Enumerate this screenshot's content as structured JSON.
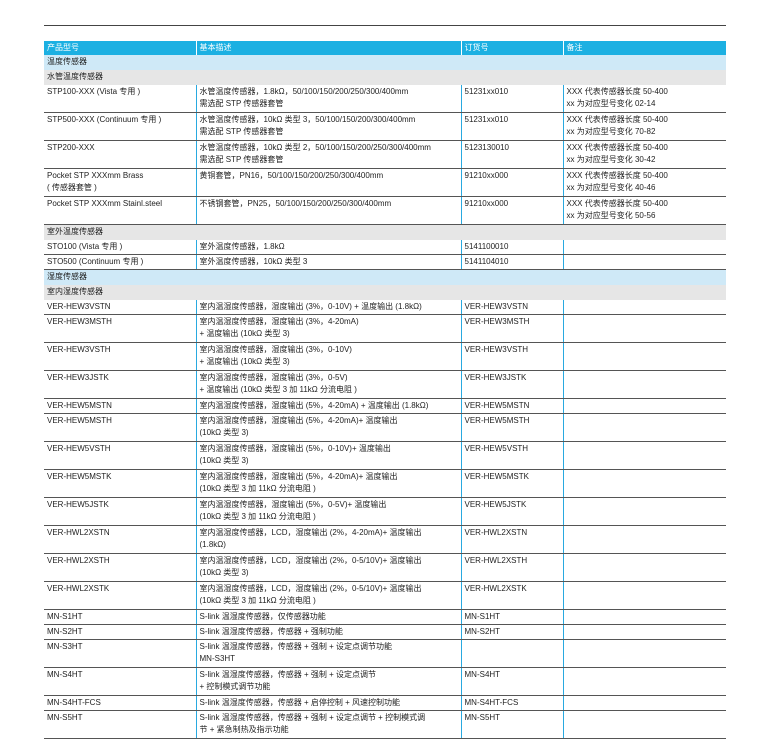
{
  "headers": [
    "产品型号",
    "基本描述",
    "订货号",
    "备注"
  ],
  "rows": [
    {
      "type": "cat",
      "label": "温度传感器"
    },
    {
      "type": "sub",
      "label": "水管温度传感器"
    },
    {
      "type": "item",
      "model": "STP100-XXX (Vista 专用 )",
      "desc": "水管温度传感器，1.8kΩ，50/100/150/200/250/300/400mm\n需选配 STP 传感器套管",
      "order": "51231xx010",
      "note": "XXX 代表传感器长度 50-400\nxx 为对应型号变化 02-14"
    },
    {
      "type": "item",
      "model": "STP500-XXX (Continuum 专用 )",
      "desc": "水管温度传感器，10kΩ 类型 3，50/100/150/200/300/400mm\n需选配 STP 传感器套管",
      "order": "51231xx010",
      "note": "XXX 代表传感器长度 50-400\nxx 为对应型号变化 70-82"
    },
    {
      "type": "item",
      "model": "STP200-XXX",
      "desc": "水管温度传感器，10kΩ 类型 2，50/100/150/200/250/300/400mm\n需选配 STP 传感器套管",
      "order": "5123130010",
      "note": "XXX 代表传感器长度 50-400\nxx 为对应型号变化 30-42"
    },
    {
      "type": "item",
      "model": "Pocket STP XXXmm Brass\n( 传感器套管 )",
      "desc": "黄铜套管，PN16，50/100/150/200/250/300/400mm",
      "order": "91210xx000",
      "note": "XXX 代表传感器长度 50-400\nxx 为对应型号变化 40-46"
    },
    {
      "type": "item",
      "model": "Pocket STP XXXmm Stainl.steel",
      "desc": "不锈钢套管，PN25，50/100/150/200/250/300/400mm",
      "order": "91210xx000",
      "note": "XXX 代表传感器长度 50-400\nxx 为对应型号变化 50-56"
    },
    {
      "type": "sub",
      "label": "室外温度传感器"
    },
    {
      "type": "item",
      "model": "STO100 (Vista 专用 )",
      "desc": "室外温度传感器，1.8kΩ",
      "order": "5141100010",
      "note": ""
    },
    {
      "type": "item",
      "model": "STO500 (Continuum 专用 )",
      "desc": "室外温度传感器，10kΩ 类型 3",
      "order": "5141104010",
      "note": ""
    },
    {
      "type": "cat",
      "label": "湿度传感器"
    },
    {
      "type": "sub",
      "label": "室内湿度传感器"
    },
    {
      "type": "item",
      "model": "VER-HEW3VSTN",
      "desc": "室内温湿度传感器，湿度输出 (3%，0-10V) + 温度输出 (1.8kΩ)",
      "order": "VER-HEW3VSTN",
      "note": ""
    },
    {
      "type": "item",
      "model": "VER-HEW3MSTH",
      "desc": "室内温湿度传感器，湿度输出 (3%，4-20mA)\n+ 温度输出 (10kΩ 类型 3)",
      "order": "VER-HEW3MSTH",
      "note": ""
    },
    {
      "type": "item",
      "model": "VER-HEW3VSTH",
      "desc": "室内温湿度传感器，湿度输出 (3%，0-10V)\n+ 温度输出 (10kΩ 类型 3)",
      "order": "VER-HEW3VSTH",
      "note": ""
    },
    {
      "type": "item",
      "model": "VER-HEW3JSTK",
      "desc": "室内温湿度传感器，湿度输出 (3%，0-5V)\n+ 温度输出 (10kΩ 类型 3 加 11kΩ 分流电阻 )",
      "order": "VER-HEW3JSTK",
      "note": ""
    },
    {
      "type": "item",
      "model": "VER-HEW5MSTN",
      "desc": "室内温湿度传感器，湿度输出 (5%，4-20mA) + 温度输出 (1.8kΩ)",
      "order": "VER-HEW5MSTN",
      "note": ""
    },
    {
      "type": "item",
      "model": "VER-HEW5MSTH",
      "desc": "室内温湿度传感器，湿度输出 (5%，4-20mA)+ 温度输出\n(10kΩ 类型 3)",
      "order": "VER-HEW5MSTH",
      "note": ""
    },
    {
      "type": "item",
      "model": "VER-HEW5VSTH",
      "desc": "室内温湿度传感器，湿度输出 (5%，0-10V)+ 温度输出\n(10kΩ 类型 3)",
      "order": "VER-HEW5VSTH",
      "note": ""
    },
    {
      "type": "item",
      "model": "VER-HEW5MSTK",
      "desc": "室内温湿度传感器，湿度输出 (5%，4-20mA)+ 温度输出\n(10kΩ 类型 3 加 11kΩ 分流电阻 )",
      "order": "VER-HEW5MSTK",
      "note": ""
    },
    {
      "type": "item",
      "model": "VER-HEW5JSTK",
      "desc": "室内温湿度传感器，湿度输出 (5%，0-5V)+ 温度输出\n(10kΩ 类型 3 加 11kΩ 分流电阻 )",
      "order": "VER-HEW5JSTK",
      "note": ""
    },
    {
      "type": "item",
      "model": "VER-HWL2XSTN",
      "desc": "室内温湿度传感器，LCD，湿度输出 (2%，4-20mA)+ 温度输出\n(1.8kΩ)",
      "order": "VER-HWL2XSTN",
      "note": ""
    },
    {
      "type": "item",
      "model": "VER-HWL2XSTH",
      "desc": "室内温湿度传感器，LCD，湿度输出 (2%，0-5/10V)+ 温度输出\n(10kΩ 类型 3)",
      "order": "VER-HWL2XSTH",
      "note": ""
    },
    {
      "type": "item",
      "model": "VER-HWL2XSTK",
      "desc": "室内温湿度传感器，LCD，湿度输出 (2%，0-5/10V)+ 温度输出\n(10kΩ 类型 3 加 11kΩ 分流电阻 )",
      "order": "VER-HWL2XSTK",
      "note": ""
    },
    {
      "type": "item",
      "model": "MN-S1HT",
      "desc": "S-link 温湿度传感器，仅传感器功能",
      "order": "MN-S1HT",
      "note": ""
    },
    {
      "type": "item",
      "model": "MN-S2HT",
      "desc": "S-link 温湿度传感器，传感器 + 强制功能",
      "order": "MN-S2HT",
      "note": ""
    },
    {
      "type": "item",
      "model": "MN-S3HT",
      "desc": "S-link 温湿度传感器，传感器 + 强制 + 设定点调节功能\nMN-S3HT",
      "order": "",
      "note": ""
    },
    {
      "type": "item",
      "model": "MN-S4HT",
      "desc": "S-link 温湿度传感器，传感器 + 强制 + 设定点调节\n+ 控制模式调节功能",
      "order": "MN-S4HT",
      "note": ""
    },
    {
      "type": "item",
      "model": "MN-S4HT-FCS",
      "desc": "S-link 温湿度传感器，传感器 + 启停控制 + 风速控制功能",
      "order": "MN-S4HT-FCS",
      "note": ""
    },
    {
      "type": "item",
      "model": "MN-S5HT",
      "desc": "S-link 温湿度传感器，传感器 + 强制 + 设定点调节 + 控制模式调\n节 + 紧急制热及指示功能",
      "order": "MN-S5HT",
      "note": ""
    }
  ]
}
